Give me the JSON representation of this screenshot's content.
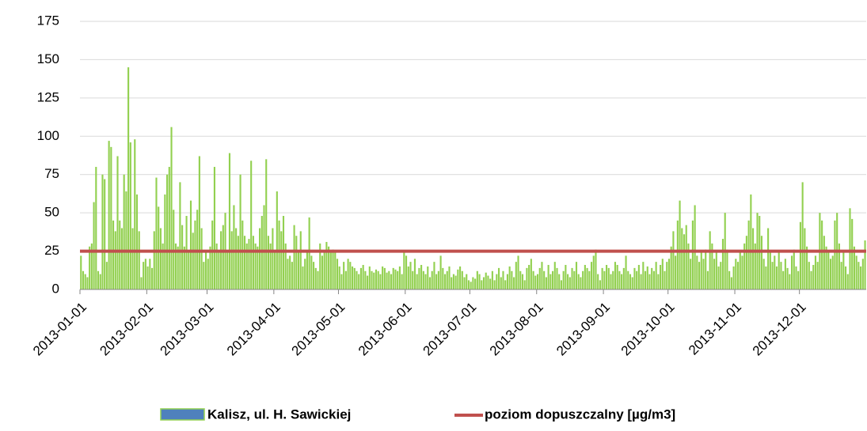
{
  "chart_data": {
    "type": "bar",
    "series": [
      {
        "name": "Kalisz, ul. H. Sawickiej",
        "color": "#92d050",
        "legend_color": "#4f81bd",
        "values": [
          22,
          12,
          10,
          8,
          28,
          30,
          57,
          80,
          12,
          10,
          75,
          72,
          18,
          97,
          93,
          45,
          38,
          87,
          45,
          40,
          75,
          64,
          145,
          96,
          40,
          98,
          62,
          38,
          8,
          18,
          20,
          15,
          20,
          14,
          38,
          73,
          54,
          40,
          30,
          62,
          75,
          80,
          106,
          52,
          30,
          28,
          70,
          42,
          28,
          48,
          25,
          58,
          37,
          45,
          52,
          87,
          40,
          18,
          25,
          20,
          28,
          45,
          80,
          30,
          25,
          38,
          42,
          50,
          25,
          89,
          38,
          55,
          40,
          35,
          75,
          45,
          35,
          30,
          33,
          84,
          35,
          30,
          28,
          40,
          48,
          55,
          85,
          35,
          30,
          40,
          25,
          64,
          45,
          38,
          48,
          30,
          20,
          22,
          18,
          42,
          35,
          24,
          38,
          15,
          20,
          25,
          47,
          22,
          18,
          14,
          12,
          30,
          22,
          25,
          31,
          28,
          25,
          26,
          24,
          20,
          15,
          10,
          18,
          12,
          20,
          18,
          15,
          14,
          12,
          10,
          14,
          16,
          12,
          9,
          15,
          12,
          11,
          13,
          12,
          10,
          15,
          14,
          11,
          12,
          10,
          14,
          13,
          12,
          15,
          10,
          25,
          22,
          15,
          18,
          12,
          20,
          10,
          14,
          16,
          12,
          10,
          15,
          8,
          12,
          18,
          10,
          12,
          22,
          14,
          10,
          12,
          15,
          8,
          10,
          9,
          13,
          15,
          12,
          8,
          10,
          6,
          5,
          8,
          7,
          12,
          10,
          6,
          8,
          11,
          9,
          7,
          12,
          6,
          10,
          14,
          8,
          12,
          6,
          10,
          15,
          12,
          8,
          18,
          22,
          12,
          10,
          6,
          14,
          16,
          20,
          12,
          9,
          10,
          14,
          18,
          12,
          8,
          16,
          10,
          12,
          18,
          14,
          10,
          6,
          12,
          16,
          10,
          8,
          14,
          12,
          18,
          10,
          8,
          12,
          16,
          14,
          12,
          18,
          22,
          26,
          10,
          6,
          14,
          12,
          16,
          14,
          10,
          12,
          18,
          16,
          12,
          10,
          14,
          22,
          12,
          10,
          8,
          14,
          12,
          16,
          10,
          18,
          12,
          15,
          10,
          14,
          12,
          18,
          10,
          16,
          20,
          12,
          18,
          20,
          28,
          38,
          22,
          45,
          58,
          40,
          36,
          42,
          30,
          20,
          45,
          55,
          22,
          18,
          25,
          20,
          26,
          12,
          38,
          30,
          20,
          25,
          15,
          18,
          33,
          50,
          26,
          12,
          8,
          15,
          20,
          18,
          25,
          22,
          30,
          35,
          45,
          62,
          40,
          30,
          50,
          48,
          35,
          20,
          15,
          40,
          25,
          18,
          22,
          15,
          25,
          18,
          12,
          20,
          14,
          10,
          22,
          26,
          15,
          12,
          44,
          70,
          40,
          28,
          18,
          12,
          16,
          22,
          18,
          50,
          45,
          35,
          28,
          25,
          20,
          22,
          45,
          50,
          30,
          18,
          25,
          15,
          10,
          53,
          46,
          28,
          22,
          18,
          15,
          20,
          32
        ]
      }
    ],
    "reference_line": {
      "name": "poziom dopuszczalny [µg/m3]",
      "color": "#c0504d",
      "value": 25
    },
    "xlim": [
      0,
      365
    ],
    "xticks": [
      {
        "value": 0,
        "label": "2013-01-01"
      },
      {
        "value": 31,
        "label": "2013-02-01"
      },
      {
        "value": 59,
        "label": "2013-03-01"
      },
      {
        "value": 90,
        "label": "2013-04-01"
      },
      {
        "value": 120,
        "label": "2013-05-01"
      },
      {
        "value": 151,
        "label": "2013-06-01"
      },
      {
        "value": 181,
        "label": "2013-07-01"
      },
      {
        "value": 212,
        "label": "2013-08-01"
      },
      {
        "value": 243,
        "label": "2013-09-01"
      },
      {
        "value": 273,
        "label": "2013-10-01"
      },
      {
        "value": 304,
        "label": "2013-11-01"
      },
      {
        "value": 334,
        "label": "2013-12-01"
      }
    ],
    "ylim": [
      0,
      175
    ],
    "yticks": [
      0,
      25,
      50,
      75,
      100,
      125,
      150,
      175
    ],
    "grid": true
  }
}
